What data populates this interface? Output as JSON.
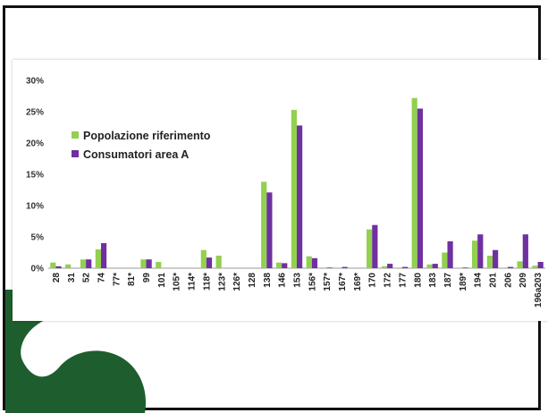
{
  "chart_data": {
    "type": "bar",
    "categories": [
      "28",
      "31",
      "52",
      "74",
      "77*",
      "81*",
      "99",
      "101",
      "105*",
      "114*",
      "118*",
      "123*",
      "126*",
      "128",
      "138",
      "146",
      "153",
      "156*",
      "157*",
      "167*",
      "169*",
      "170",
      "172",
      "177",
      "180",
      "183",
      "187",
      "189*",
      "194",
      "201",
      "206",
      "209",
      "196a203"
    ],
    "series": [
      {
        "name": "Popolazione riferimento",
        "color": "#92d050",
        "values": [
          0.9,
          0.6,
          1.4,
          3.0,
          0,
          0,
          1.4,
          1.0,
          0,
          0,
          2.9,
          2.0,
          0,
          0,
          13.8,
          0.9,
          25.3,
          1.9,
          0.1,
          0,
          0,
          6.2,
          0.3,
          0.1,
          27.2,
          0.6,
          2.5,
          0,
          4.4,
          2.0,
          0,
          1.1,
          0.4
        ]
      },
      {
        "name": "Consumatori area A",
        "color": "#7030a0",
        "values": [
          0.3,
          0,
          1.4,
          4.0,
          0,
          0,
          1.4,
          0,
          0,
          0,
          1.7,
          0,
          0,
          0,
          12.1,
          0.8,
          22.8,
          1.6,
          0.1,
          0.2,
          0,
          6.9,
          0.7,
          0.2,
          25.5,
          0.7,
          4.3,
          0.1,
          5.4,
          2.9,
          0.2,
          5.4,
          1.0
        ]
      }
    ],
    "yticks": [
      "0%",
      "5%",
      "10%",
      "15%",
      "20%",
      "25%",
      "30%"
    ],
    "ylim": [
      0,
      30
    ],
    "grid": false,
    "legend": "top-left"
  },
  "colors": {
    "deco_green": "#1e5e2e",
    "frame": "#111111",
    "axis": "#9a9a9a"
  }
}
